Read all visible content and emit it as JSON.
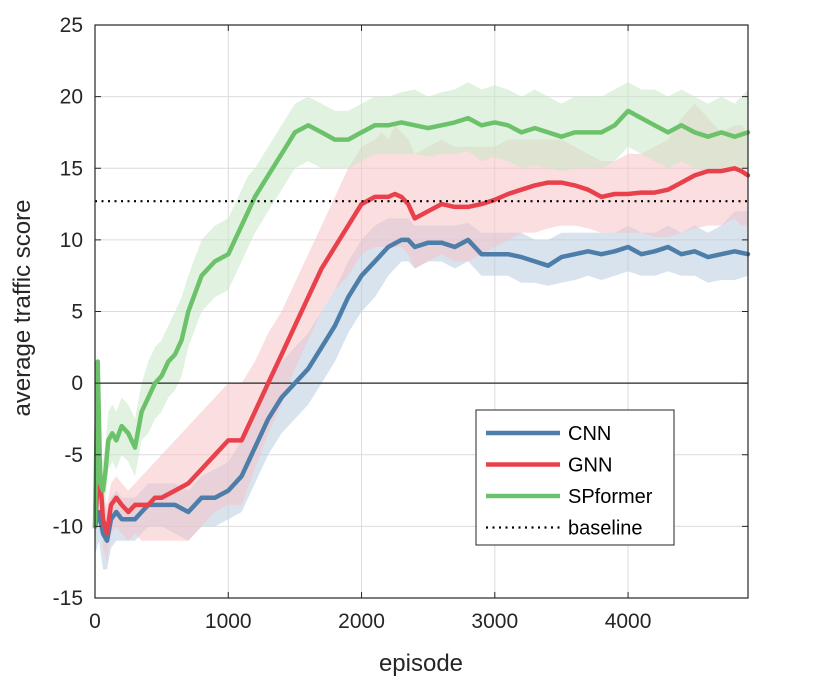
{
  "chart_data": {
    "type": "line",
    "title": "",
    "xlabel": "episode",
    "ylabel": "average traffic score",
    "xlim": [
      0,
      4900
    ],
    "ylim": [
      -15,
      25
    ],
    "xticks": [
      0,
      1000,
      2000,
      3000,
      4000
    ],
    "yticks": [
      -15,
      -10,
      -5,
      0,
      5,
      10,
      15,
      20,
      25
    ],
    "xtick_labels": [
      "0",
      "1000",
      "2000",
      "3000",
      "4000"
    ],
    "ytick_labels": [
      "-15",
      "-10",
      "-5",
      "0",
      "5",
      "10",
      "15",
      "20",
      "25"
    ],
    "grid": true,
    "legend_position": "lower-right",
    "zero_line": true,
    "series": [
      {
        "name": "CNN",
        "color": "#4d7eaa",
        "band_color": "#b8cce0",
        "x": [
          0,
          30,
          60,
          90,
          120,
          160,
          200,
          250,
          300,
          350,
          400,
          450,
          500,
          600,
          700,
          800,
          900,
          1000,
          1100,
          1200,
          1300,
          1400,
          1500,
          1600,
          1700,
          1800,
          1900,
          2000,
          2100,
          2200,
          2300,
          2350,
          2400,
          2500,
          2600,
          2700,
          2800,
          2900,
          3000,
          3100,
          3200,
          3300,
          3400,
          3500,
          3600,
          3700,
          3800,
          3900,
          4000,
          4100,
          4200,
          4300,
          4400,
          4500,
          4600,
          4700,
          4800,
          4900
        ],
        "values": [
          -10,
          -9,
          -10.5,
          -11,
          -9.5,
          -9,
          -9.5,
          -9.5,
          -9.5,
          -9,
          -8.5,
          -8.5,
          -8.5,
          -8.5,
          -9,
          -8,
          -8,
          -7.5,
          -6.5,
          -4.5,
          -2.5,
          -1,
          0,
          1,
          2.5,
          4,
          6,
          7.5,
          8.5,
          9.5,
          10,
          10,
          9.5,
          9.8,
          9.8,
          9.5,
          10,
          9,
          9,
          9,
          8.8,
          8.5,
          8.2,
          8.8,
          9,
          9.2,
          9,
          9.2,
          9.5,
          9,
          9.2,
          9.5,
          9,
          9.2,
          8.8,
          9,
          9.2,
          9
        ],
        "upper": [
          -8,
          -7.5,
          -8,
          -9,
          -8,
          -7.5,
          -8,
          -8,
          -8,
          -7.5,
          -7,
          -7,
          -7,
          -7,
          -7.5,
          -6.5,
          -6,
          -5.5,
          -4,
          -2,
          0,
          1.5,
          2.5,
          3.5,
          5,
          6.5,
          8.5,
          10,
          11,
          11.5,
          11.5,
          11.5,
          11,
          11,
          11,
          11,
          11.2,
          10.5,
          10.5,
          10.5,
          10.5,
          10,
          10,
          10.5,
          10.5,
          10.5,
          10.5,
          10.5,
          11,
          10.5,
          10.5,
          11,
          10.5,
          11,
          10.5,
          11,
          12,
          12
        ],
        "lower": [
          -12,
          -11,
          -13,
          -13,
          -11.5,
          -11,
          -11,
          -11,
          -11,
          -10.5,
          -10,
          -10,
          -10,
          -10.5,
          -11,
          -10,
          -10,
          -9.5,
          -9,
          -7,
          -5,
          -3.5,
          -2.5,
          -1.5,
          0,
          1.5,
          3.5,
          5,
          6,
          7.5,
          8.5,
          8.5,
          8,
          8.5,
          8.5,
          8,
          8.5,
          7.5,
          7.5,
          7.5,
          7,
          7,
          6.8,
          7,
          7.2,
          7.5,
          7.2,
          7.5,
          7.8,
          7.5,
          7.5,
          7.8,
          7.5,
          7.5,
          7,
          7.2,
          7.2,
          7.5
        ]
      },
      {
        "name": "GNN",
        "color": "#e8414b",
        "band_color": "#f6c3c6",
        "x": [
          0,
          30,
          60,
          90,
          120,
          160,
          200,
          250,
          300,
          350,
          400,
          450,
          500,
          600,
          700,
          800,
          900,
          1000,
          1100,
          1200,
          1300,
          1400,
          1500,
          1600,
          1700,
          1800,
          1900,
          2000,
          2100,
          2150,
          2200,
          2250,
          2300,
          2350,
          2400,
          2500,
          2600,
          2700,
          2800,
          2900,
          3000,
          3100,
          3200,
          3300,
          3400,
          3500,
          3600,
          3700,
          3800,
          3900,
          4000,
          4100,
          4200,
          4300,
          4400,
          4500,
          4600,
          4700,
          4800,
          4850,
          4900
        ],
        "values": [
          -10,
          -5.5,
          -9.5,
          -10.5,
          -8.5,
          -8,
          -8.5,
          -9,
          -8.5,
          -8.5,
          -8.5,
          -8,
          -8,
          -7.5,
          -7,
          -6,
          -5,
          -4,
          -4,
          -2,
          0,
          2,
          4,
          6,
          8,
          9.5,
          11,
          12.5,
          13,
          13,
          13,
          13.2,
          13,
          12.5,
          11.5,
          12,
          12.5,
          12.3,
          12.3,
          12.5,
          12.8,
          13.2,
          13.5,
          13.8,
          14,
          14,
          13.8,
          13.5,
          13,
          13.2,
          13.2,
          13.3,
          13.3,
          13.5,
          14,
          14.5,
          14.8,
          14.8,
          15,
          14.8,
          14.5
        ],
        "upper": [
          -8,
          -4,
          -7.5,
          -8.5,
          -7,
          -6.5,
          -7,
          -7.5,
          -7,
          -6.5,
          -6,
          -5.5,
          -5,
          -4,
          -3,
          -2,
          -1,
          0,
          0,
          1.5,
          3.5,
          5,
          7,
          9,
          11,
          13,
          15,
          16.5,
          17,
          17.5,
          17,
          18,
          17.5,
          17,
          16,
          16.5,
          17,
          16.5,
          16.5,
          16.5,
          16.5,
          17,
          17,
          17,
          17,
          17,
          16.5,
          16,
          15.5,
          15.5,
          16,
          16,
          16.5,
          17,
          18.5,
          19.5,
          18.5,
          17.5,
          18,
          18,
          17.5
        ],
        "lower": [
          -12,
          -7,
          -11.5,
          -12.5,
          -10.5,
          -10,
          -10.5,
          -11,
          -10.5,
          -11,
          -11,
          -11,
          -11,
          -11,
          -11,
          -10,
          -9,
          -8.5,
          -8.5,
          -6,
          -3.5,
          -1.5,
          1,
          3,
          5,
          6.5,
          7.5,
          9,
          9.5,
          9.5,
          9.5,
          9.5,
          9.5,
          9,
          8,
          8.5,
          9,
          8.5,
          8.5,
          9,
          9.5,
          10,
          10.5,
          10.5,
          10.8,
          11,
          11,
          10.8,
          10.5,
          10.5,
          10.5,
          10.5,
          10.2,
          10.2,
          10.5,
          10.8,
          11,
          11,
          11.5,
          11,
          11
        ]
      },
      {
        "name": "SPformer",
        "color": "#6cc26a",
        "band_color": "#c8e8c6",
        "x": [
          0,
          20,
          40,
          60,
          80,
          100,
          130,
          160,
          200,
          250,
          300,
          350,
          400,
          450,
          500,
          550,
          600,
          650,
          700,
          800,
          900,
          1000,
          1050,
          1100,
          1150,
          1200,
          1300,
          1400,
          1500,
          1600,
          1700,
          1800,
          1900,
          2000,
          2100,
          2200,
          2300,
          2400,
          2500,
          2600,
          2700,
          2800,
          2900,
          3000,
          3100,
          3200,
          3300,
          3400,
          3500,
          3600,
          3700,
          3800,
          3900,
          4000,
          4100,
          4200,
          4300,
          4400,
          4500,
          4600,
          4700,
          4800,
          4900
        ],
        "values": [
          -10,
          1.5,
          -7,
          -7.5,
          -6,
          -4,
          -3.5,
          -4,
          -3,
          -3.5,
          -4.5,
          -2,
          -1,
          0,
          0.5,
          1.5,
          2,
          3,
          5,
          7.5,
          8.5,
          9,
          10,
          11,
          12,
          13,
          14.5,
          16,
          17.5,
          18,
          17.5,
          17,
          17,
          17.5,
          18,
          18,
          18.2,
          18,
          17.8,
          18,
          18.2,
          18.5,
          18,
          18.2,
          18,
          17.5,
          17.8,
          17.5,
          17.2,
          17.5,
          17.5,
          17.5,
          18,
          19,
          18.5,
          18,
          17.5,
          18,
          17.5,
          17.2,
          17.5,
          17.2,
          17.5
        ],
        "upper": [
          -8,
          2.5,
          -5,
          -5.5,
          -4,
          -2,
          -1.5,
          -2,
          -1,
          -1.5,
          -2.5,
          0,
          1.5,
          2.5,
          3,
          4,
          5,
          6,
          7.5,
          10,
          11,
          11.5,
          12.5,
          13.5,
          14.5,
          15,
          16.5,
          18,
          19.5,
          20,
          19.5,
          19,
          19,
          19.5,
          20,
          20,
          20.3,
          20.5,
          20,
          20.3,
          20.5,
          21,
          20.5,
          20.8,
          20.5,
          20,
          20.5,
          20,
          19.5,
          20,
          20,
          20,
          20.5,
          21,
          20.5,
          20.5,
          20,
          20.5,
          20,
          19.5,
          20,
          19.5,
          20.5
        ],
        "lower": [
          -10.5,
          -1,
          -9,
          -9.5,
          -8,
          -6,
          -5.5,
          -6,
          -5,
          -5.5,
          -6.5,
          -4,
          -3.5,
          -2.5,
          -2,
          -1,
          -0.5,
          0.5,
          2.5,
          5,
          6,
          6.5,
          7.5,
          8.5,
          9.5,
          10.5,
          12,
          13.5,
          15,
          15.5,
          15,
          15,
          15,
          15.5,
          16,
          16,
          16,
          16,
          15.8,
          16,
          16,
          16.2,
          15.5,
          15.8,
          15.5,
          15,
          15.2,
          15,
          14.8,
          15,
          15,
          15,
          15.5,
          16.5,
          16,
          15.5,
          15,
          15.5,
          15,
          14.8,
          15,
          14.8,
          15
        ]
      }
    ],
    "baseline": {
      "name": "baseline",
      "value": 12.7,
      "color": "#000000"
    }
  }
}
